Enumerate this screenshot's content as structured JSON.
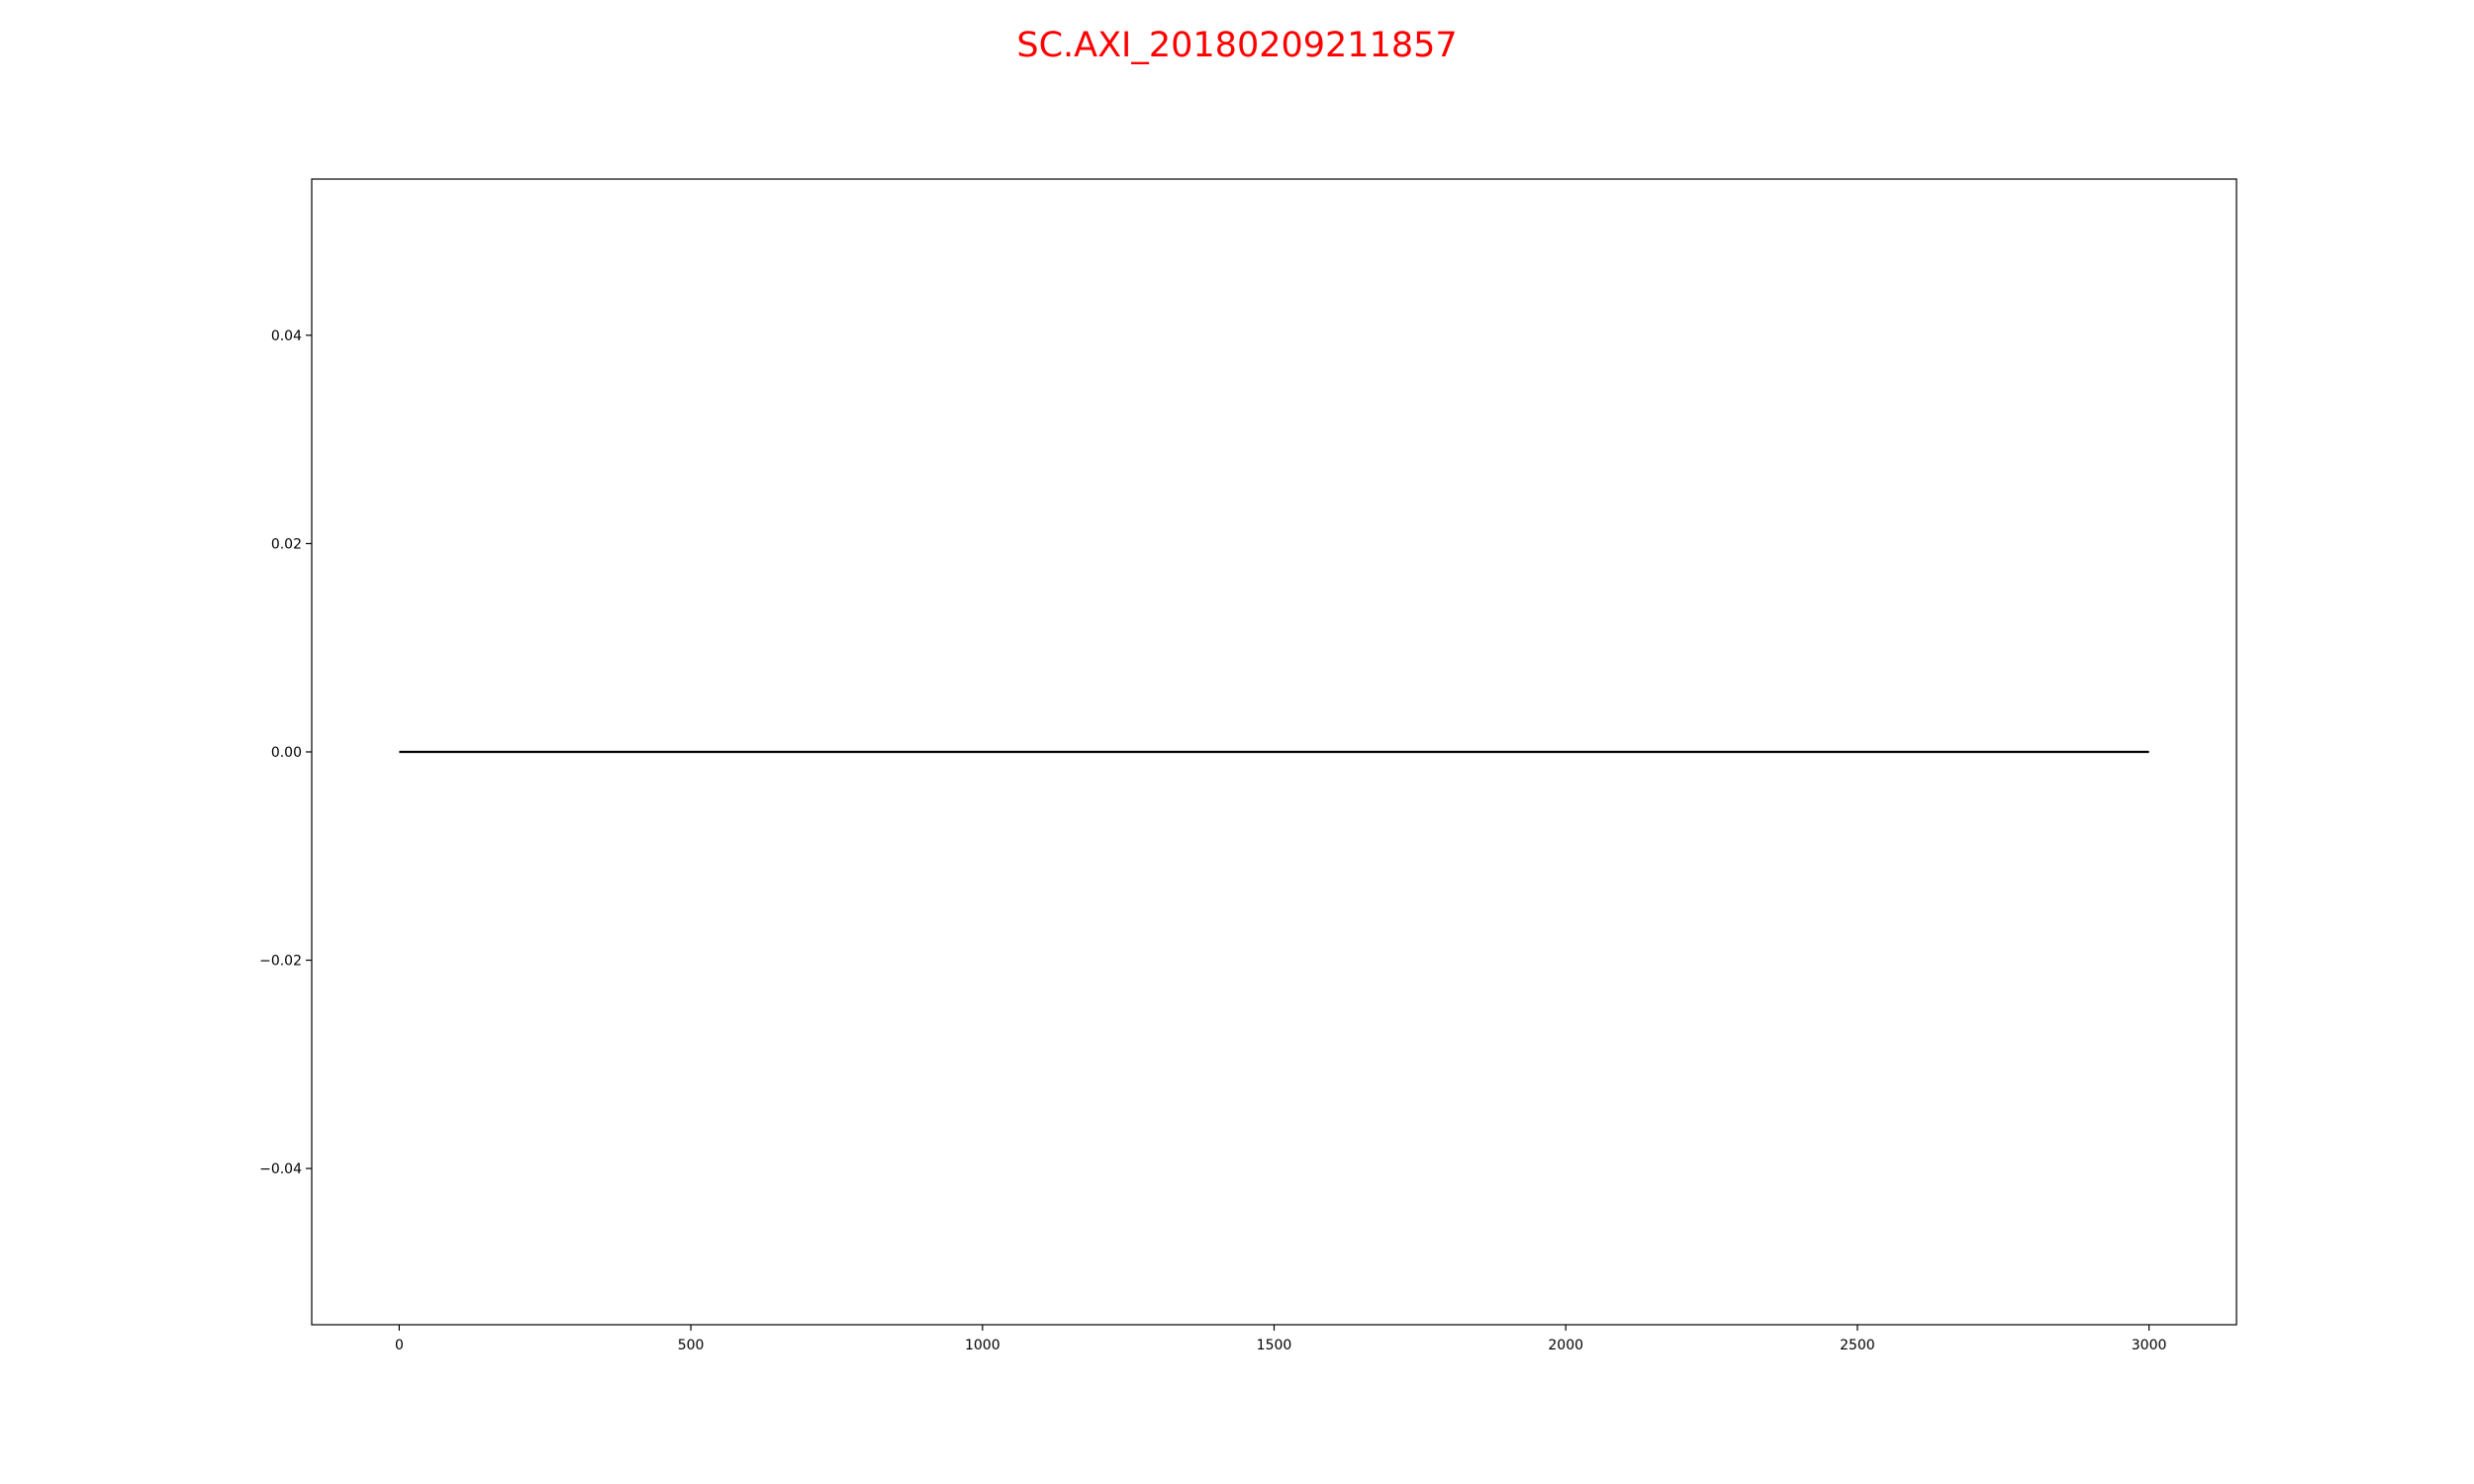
{
  "chart_data": {
    "type": "line",
    "title": "SC.AXI_20180209211857",
    "xlabel": "",
    "ylabel": "",
    "xlim": [
      -150,
      3150
    ],
    "ylim": [
      -0.055,
      0.055
    ],
    "xticks": [
      0,
      500,
      1000,
      1500,
      2000,
      2500,
      3000
    ],
    "xtick_labels": [
      "0",
      "500",
      "1000",
      "1500",
      "2000",
      "2500",
      "3000"
    ],
    "yticks": [
      -0.04,
      -0.02,
      0.0,
      0.02,
      0.04
    ],
    "ytick_labels": [
      "−0.04",
      "−0.02",
      "0.00",
      "0.02",
      "0.04"
    ],
    "grid": false,
    "legend": "none",
    "series": [
      {
        "color": "#000000",
        "x": [
          0,
          3000
        ],
        "y": [
          0.0,
          0.0
        ]
      }
    ]
  },
  "colors": {
    "title": "#ff0000",
    "axes": "#000000",
    "background": "#ffffff"
  }
}
